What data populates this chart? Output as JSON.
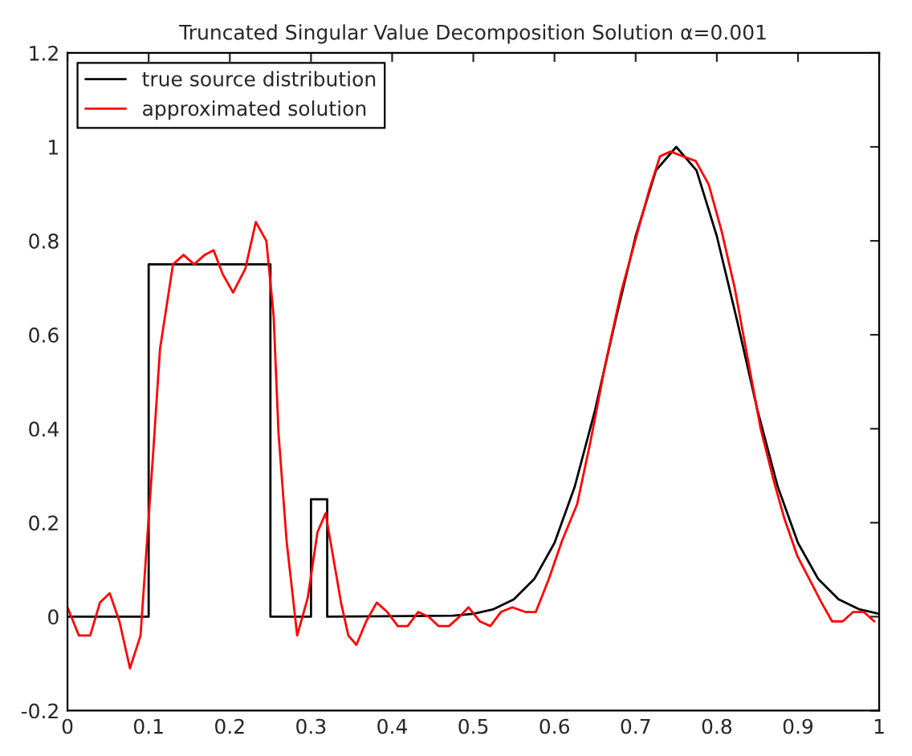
{
  "chart_data": {
    "type": "line",
    "title": "Truncated Singular Value Decomposition Solution α=0.001",
    "series": [
      {
        "name": "true source distribution",
        "color": "#000000",
        "x": [
          0,
          0.1,
          0.1,
          0.25,
          0.25,
          0.3,
          0.3,
          0.32,
          0.32,
          0.475,
          0.5,
          0.525,
          0.55,
          0.575,
          0.6,
          0.625,
          0.65,
          0.675,
          0.7,
          0.725,
          0.75,
          0.775,
          0.8,
          0.825,
          0.85,
          0.875,
          0.9,
          0.925,
          0.95,
          0.975,
          1
        ],
        "values": [
          0,
          0,
          0.75,
          0.75,
          0,
          0,
          0.25,
          0.25,
          0,
          0.002,
          0.006,
          0.016,
          0.037,
          0.08,
          0.157,
          0.277,
          0.44,
          0.63,
          0.81,
          0.95,
          1,
          0.95,
          0.81,
          0.63,
          0.44,
          0.277,
          0.157,
          0.08,
          0.037,
          0.016,
          0.006
        ]
      },
      {
        "name": "approximated solution",
        "color": "#ff0000",
        "x": [
          0,
          0.014,
          0.028,
          0.04,
          0.052,
          0.064,
          0.077,
          0.09,
          0.098,
          0.106,
          0.114,
          0.13,
          0.143,
          0.156,
          0.169,
          0.18,
          0.191,
          0.204,
          0.219,
          0.232,
          0.245,
          0.254,
          0.26,
          0.27,
          0.283,
          0.296,
          0.308,
          0.318,
          0.327,
          0.337,
          0.346,
          0.356,
          0.368,
          0.381,
          0.394,
          0.407,
          0.419,
          0.432,
          0.445,
          0.457,
          0.47,
          0.483,
          0.494,
          0.508,
          0.521,
          0.534,
          0.548,
          0.564,
          0.577,
          0.593,
          0.609,
          0.628,
          0.644,
          0.663,
          0.682,
          0.701,
          0.717,
          0.73,
          0.743,
          0.758,
          0.774,
          0.79,
          0.806,
          0.822,
          0.838,
          0.854,
          0.87,
          0.883,
          0.899,
          0.914,
          0.929,
          0.942,
          0.955,
          0.968,
          0.981,
          0.994
        ],
        "values": [
          0.02,
          -0.04,
          -0.04,
          0.03,
          0.05,
          -0.01,
          -0.11,
          -0.04,
          0.16,
          0.36,
          0.57,
          0.75,
          0.77,
          0.75,
          0.77,
          0.78,
          0.73,
          0.69,
          0.74,
          0.84,
          0.8,
          0.64,
          0.39,
          0.16,
          -0.04,
          0.04,
          0.18,
          0.22,
          0.13,
          0.03,
          -0.04,
          -0.06,
          -0.01,
          0.03,
          0.01,
          -0.02,
          -0.02,
          0.01,
          0.0,
          -0.02,
          -0.02,
          0.0,
          0.02,
          -0.01,
          -0.02,
          0.01,
          0.02,
          0.01,
          0.01,
          0.08,
          0.16,
          0.24,
          0.37,
          0.54,
          0.69,
          0.81,
          0.91,
          0.98,
          0.99,
          0.98,
          0.97,
          0.92,
          0.82,
          0.7,
          0.55,
          0.4,
          0.29,
          0.21,
          0.13,
          0.08,
          0.03,
          -0.01,
          -0.01,
          0.01,
          0.01,
          -0.01
        ]
      }
    ],
    "xlim": [
      0,
      1
    ],
    "xticks": [
      0,
      0.1,
      0.2,
      0.3,
      0.4,
      0.5,
      0.6,
      0.7,
      0.8,
      0.9,
      1
    ],
    "ylim": [
      -0.2,
      1.2
    ],
    "yticks": [
      -0.2,
      0,
      0.2,
      0.4,
      0.6,
      0.8,
      1,
      1.2
    ],
    "legend": "top left",
    "grid": false
  }
}
